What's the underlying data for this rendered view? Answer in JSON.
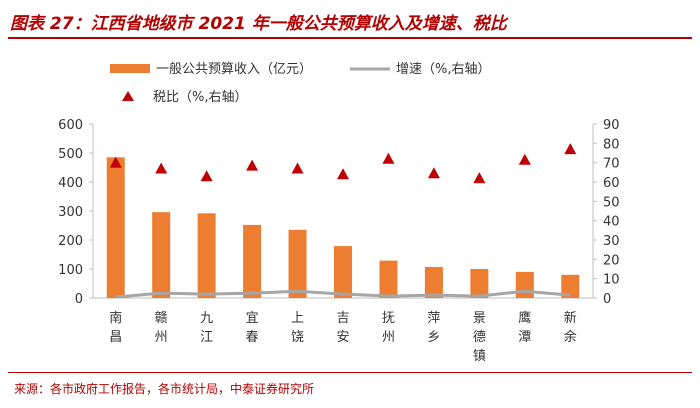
{
  "title": "图表 27：江西省地级市 2021 年一般公共预算收入及增速、税比",
  "source": "来源：各市政府工作报告，各市统计局，中泰证券研究所",
  "colors": {
    "bar": "#ed7d31",
    "growth_line": "#a6a6a6",
    "tax_marker": "#c00000",
    "title": "#b30000"
  },
  "chart_data": {
    "type": "bar",
    "categories": [
      "南昌",
      "赣州",
      "九江",
      "宜春",
      "上饶",
      "吉安",
      "抚州",
      "萍乡",
      "景德镇",
      "鹰潭",
      "新余"
    ],
    "series": [
      {
        "name": "一般公共预算收入（亿元）",
        "type": "bar",
        "axis": "left",
        "values": [
          485,
          296,
          292,
          252,
          235,
          179,
          129,
          107,
          100,
          90,
          80
        ]
      },
      {
        "name": "增速（%,右轴）",
        "type": "line",
        "axis": "right",
        "values": [
          0.5,
          2.5,
          2,
          2.5,
          3.5,
          2,
          1,
          1.5,
          1,
          3.5,
          1.5
        ]
      },
      {
        "name": "税比（%,右轴）",
        "type": "scatter",
        "axis": "right",
        "values": [
          70,
          67,
          63,
          68.5,
          67,
          64,
          72,
          64.5,
          62,
          71.5,
          77
        ]
      }
    ],
    "left_axis": {
      "ylim": [
        0,
        600
      ],
      "ticks": [
        0,
        100,
        200,
        300,
        400,
        500,
        600
      ]
    },
    "right_axis": {
      "ylim": [
        0,
        90
      ],
      "ticks": [
        0,
        10,
        20,
        30,
        40,
        50,
        60,
        70,
        80,
        90
      ]
    },
    "legend": [
      "一般公共预算收入（亿元）",
      "增速（%,右轴）",
      "税比（%,右轴）"
    ]
  }
}
